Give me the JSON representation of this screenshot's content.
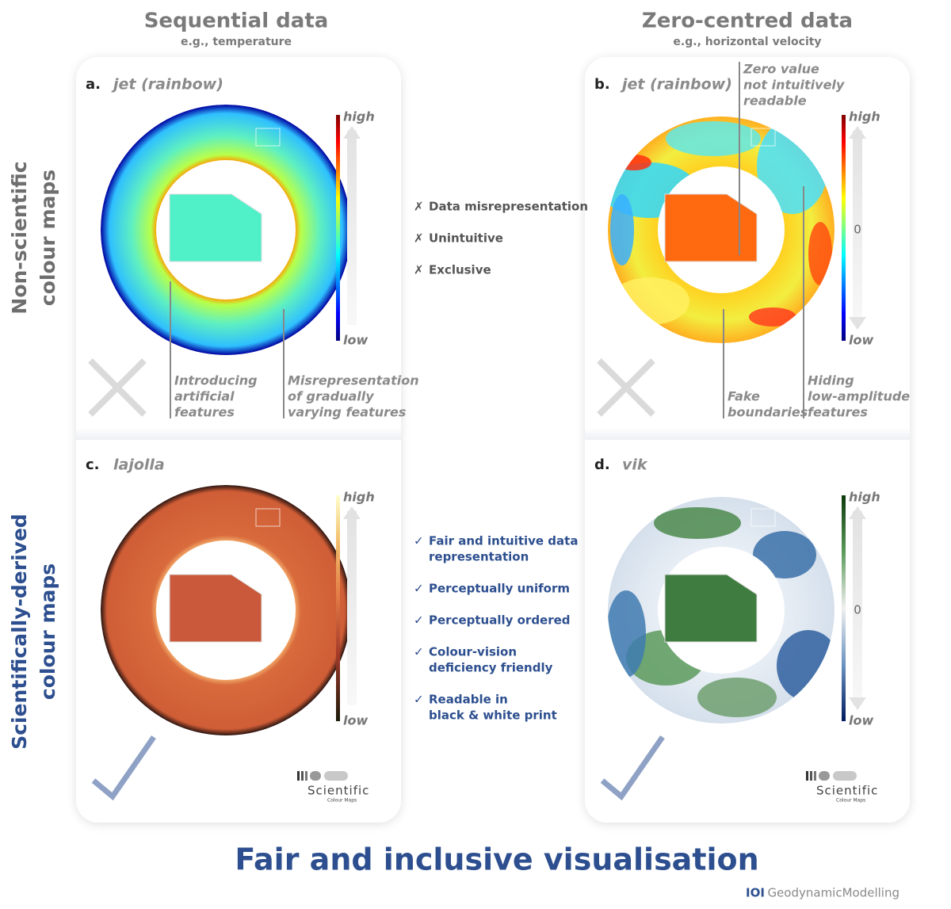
{
  "columns": [
    {
      "title": "Sequential data",
      "subtitle": "e.g., temperature"
    },
    {
      "title": "Zero-centred data",
      "subtitle": "e.g., horizontal velocity"
    }
  ],
  "rows": [
    {
      "lines": [
        "Non-scientific",
        "colour maps"
      ]
    },
    {
      "lines": [
        "Scientifically-derived",
        "colour maps"
      ]
    }
  ],
  "panels": [
    {
      "letter": "a.",
      "name": "jet (rainbow)",
      "high": "high",
      "low": "low",
      "annotations": [
        {
          "lines": [
            "Introducing",
            "artificial",
            "features"
          ]
        },
        {
          "lines": [
            "Misrepresentation",
            "of gradually",
            "varying features"
          ]
        }
      ]
    },
    {
      "letter": "b.",
      "name": "jet (rainbow)",
      "high": "high",
      "mid": "0",
      "low": "low",
      "annotations": [
        {
          "lines": [
            "Zero value",
            "not intuitively",
            "readable"
          ]
        },
        {
          "lines": [
            "Fake",
            "boundaries"
          ]
        },
        {
          "lines": [
            "Hiding",
            "low-amplitude",
            "features"
          ]
        }
      ]
    },
    {
      "letter": "c.",
      "name": "lajolla",
      "high": "high",
      "low": "low",
      "logo": {
        "name": "Scientific",
        "sub": "Colour Maps"
      }
    },
    {
      "letter": "d.",
      "name": "vik",
      "high": "high",
      "mid": "0",
      "low": "low",
      "logo": {
        "name": "Scientific",
        "sub": "Colour Maps"
      }
    }
  ],
  "cons": {
    "mark": "✗",
    "items": [
      "Data misrepresentation",
      "Unintuitive",
      "Exclusive"
    ]
  },
  "pros": {
    "mark": "✓",
    "items": [
      [
        "Fair and intuitive data",
        "representation"
      ],
      [
        "Perceptually uniform"
      ],
      [
        "Perceptually ordered"
      ],
      [
        "Colour-vision",
        "deficiency friendly"
      ],
      [
        "Readable in",
        "black & white print"
      ]
    ]
  },
  "footer": {
    "title": "Fair and inclusive visualisation",
    "brand_mark": "IOI",
    "brand": "GeodynamicModelling"
  }
}
